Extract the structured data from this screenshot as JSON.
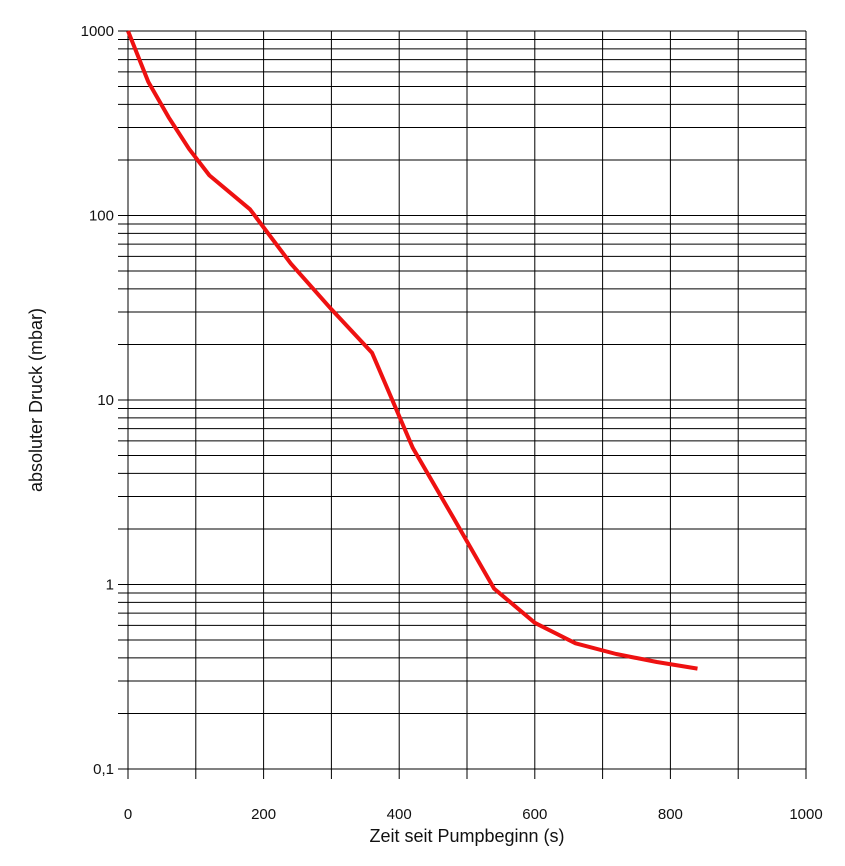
{
  "chart_data": {
    "type": "line",
    "title": "",
    "xlabel": "Zeit seit Pumpbeginn (s)",
    "ylabel": "absoluter Druck (mbar)",
    "xlim": [
      0,
      1000
    ],
    "ylim": [
      0.1,
      1000
    ],
    "yscale": "log",
    "grid": true,
    "x_ticks": [
      0,
      100,
      200,
      300,
      400,
      500,
      600,
      700,
      800,
      900,
      1000
    ],
    "x_tick_labels": [
      "0",
      "",
      "200",
      "",
      "400",
      "",
      "600",
      "",
      "800",
      "",
      "1000"
    ],
    "y_ticks": [
      0.1,
      1,
      10,
      100,
      1000
    ],
    "y_tick_labels": [
      "0,1",
      "1",
      "10",
      "100",
      "1000"
    ],
    "series": [
      {
        "color": "#ee1111",
        "x": [
          0,
          30,
          60,
          90,
          120,
          180,
          240,
          300,
          360,
          420,
          480,
          540,
          600,
          660,
          720,
          780,
          840
        ],
        "y": [
          1000,
          530,
          340,
          230,
          165,
          108,
          55,
          31,
          18,
          5.5,
          2.3,
          0.95,
          0.62,
          0.48,
          0.42,
          0.38,
          0.35
        ]
      }
    ]
  }
}
